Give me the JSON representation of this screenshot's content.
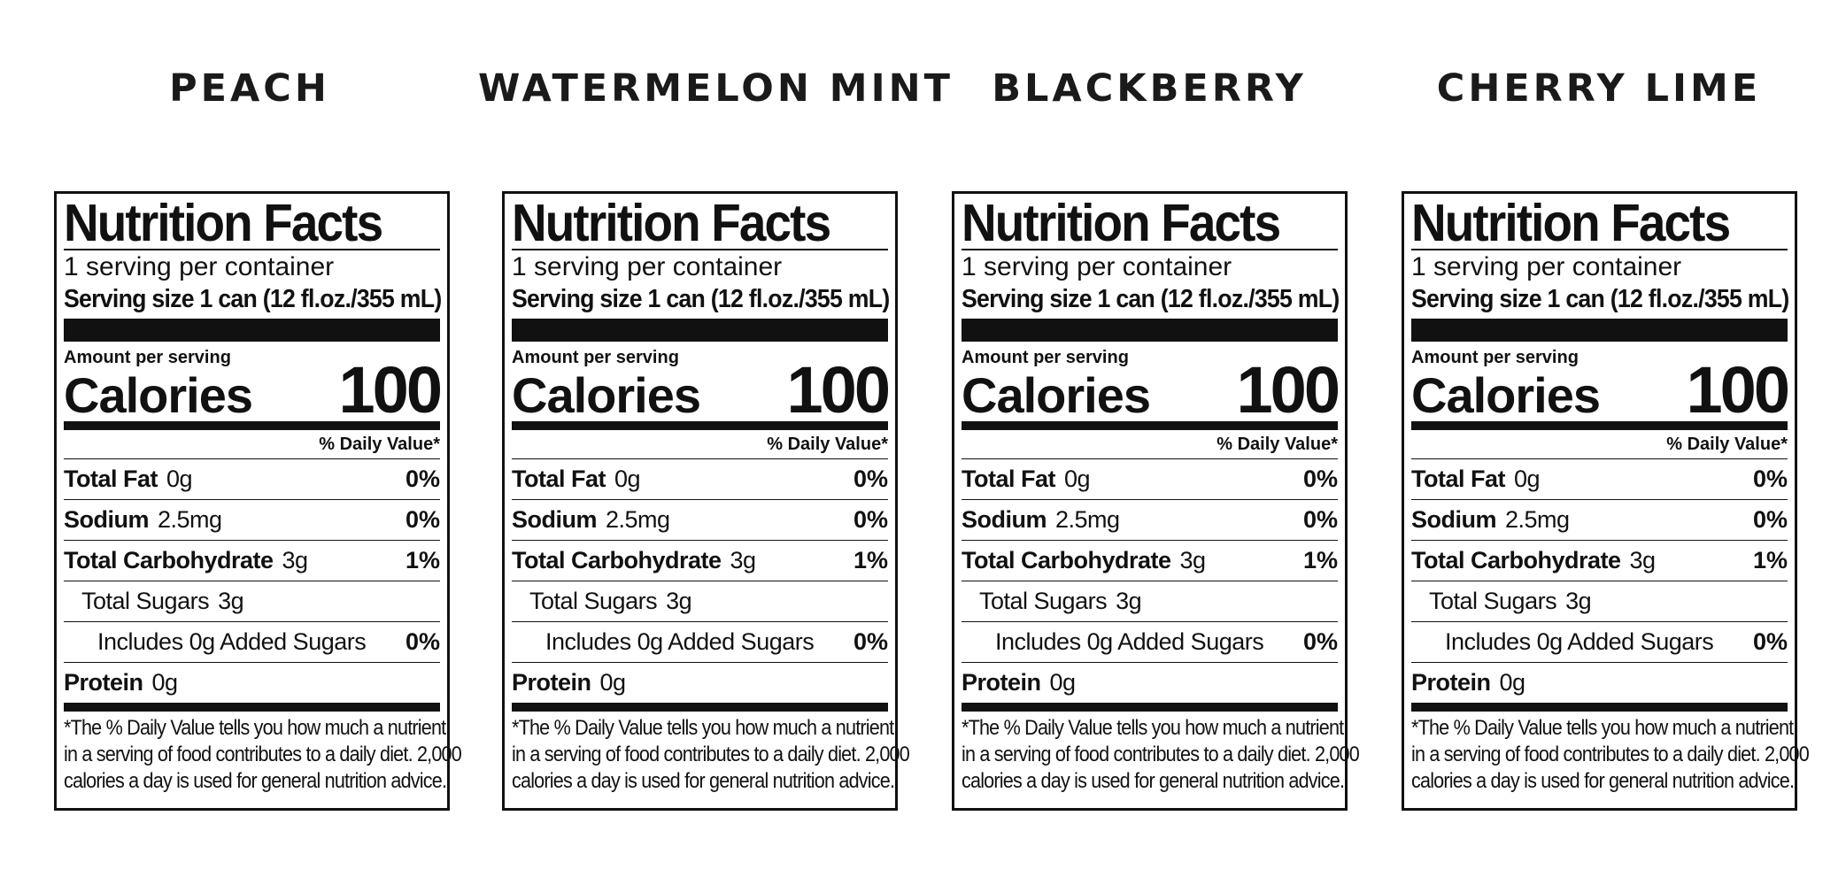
{
  "flavors": [
    {
      "name": "PEACH",
      "label": {
        "title": "Nutrition Facts",
        "servings_per_container": "1 serving per container",
        "serving_size": "Serving size 1 can  (12 fl.oz./355 mL)",
        "amount_per_serving": "Amount per serving",
        "calories_label": "Calories",
        "calories_value": "100",
        "daily_value_header": "% Daily Value*",
        "nutrients": [
          {
            "name": "Total Fat",
            "amount": "0g",
            "dv": "0%"
          },
          {
            "name": "Sodium",
            "amount": "2.5mg",
            "dv": "0%"
          },
          {
            "name": "Total Carbohydrate",
            "amount": "3g",
            "dv": "1%"
          },
          {
            "name": "Total Sugars",
            "amount": "3g",
            "dv": ""
          },
          {
            "name": "Includes 0g Added Sugars",
            "amount": "",
            "dv": "0%"
          },
          {
            "name": "Protein",
            "amount": "0g",
            "dv": ""
          }
        ],
        "footnote": [
          "*The % Daily Value tells you how much a nutrient",
          "in a serving of food contributes to a daily diet. 2,000",
          "calories a day is used for general nutrition advice."
        ]
      }
    },
    {
      "name": "WATERMELON MINT",
      "label": {
        "title": "Nutrition Facts",
        "servings_per_container": "1 serving per container",
        "serving_size": "Serving size 1 can  (12 fl.oz./355 mL)",
        "amount_per_serving": "Amount per serving",
        "calories_label": "Calories",
        "calories_value": "100",
        "daily_value_header": "% Daily Value*",
        "nutrients": [
          {
            "name": "Total Fat",
            "amount": "0g",
            "dv": "0%"
          },
          {
            "name": "Sodium",
            "amount": "2.5mg",
            "dv": "0%"
          },
          {
            "name": "Total Carbohydrate",
            "amount": "3g",
            "dv": "1%"
          },
          {
            "name": "Total Sugars",
            "amount": "3g",
            "dv": ""
          },
          {
            "name": "Includes 0g Added Sugars",
            "amount": "",
            "dv": "0%"
          },
          {
            "name": "Protein",
            "amount": "0g",
            "dv": ""
          }
        ],
        "footnote": [
          "*The % Daily Value tells you how much a nutrient",
          "in a serving of food contributes to a daily diet. 2,000",
          "calories a day is used for general nutrition advice."
        ]
      }
    },
    {
      "name": "BLACKBERRY",
      "label": {
        "title": "Nutrition Facts",
        "servings_per_container": "1 serving per container",
        "serving_size": "Serving size 1 can  (12 fl.oz./355 mL)",
        "amount_per_serving": "Amount per serving",
        "calories_label": "Calories",
        "calories_value": "100",
        "daily_value_header": "% Daily Value*",
        "nutrients": [
          {
            "name": "Total Fat",
            "amount": "0g",
            "dv": "0%"
          },
          {
            "name": "Sodium",
            "amount": "2.5mg",
            "dv": "0%"
          },
          {
            "name": "Total Carbohydrate",
            "amount": "3g",
            "dv": "1%"
          },
          {
            "name": "Total Sugars",
            "amount": "3g",
            "dv": ""
          },
          {
            "name": "Includes 0g Added Sugars",
            "amount": "",
            "dv": "0%"
          },
          {
            "name": "Protein",
            "amount": "0g",
            "dv": ""
          }
        ],
        "footnote": [
          "*The % Daily Value tells you how much a nutrient",
          "in a serving of food contributes to a daily diet. 2,000",
          "calories a day is used for general nutrition advice."
        ]
      }
    },
    {
      "name": "CHERRY LIME",
      "label": {
        "title": "Nutrition Facts",
        "servings_per_container": "1 serving per container",
        "serving_size": "Serving size 1 can  (12 fl.oz./355 mL)",
        "amount_per_serving": "Amount per serving",
        "calories_label": "Calories",
        "calories_value": "100",
        "daily_value_header": "% Daily Value*",
        "nutrients": [
          {
            "name": "Total Fat",
            "amount": "0g",
            "dv": "0%"
          },
          {
            "name": "Sodium",
            "amount": "2.5mg",
            "dv": "0%"
          },
          {
            "name": "Total Carbohydrate",
            "amount": "3g",
            "dv": "1%"
          },
          {
            "name": "Total Sugars",
            "amount": "3g",
            "dv": ""
          },
          {
            "name": "Includes 0g Added Sugars",
            "amount": "",
            "dv": "0%"
          },
          {
            "name": "Protein",
            "amount": "0g",
            "dv": ""
          }
        ],
        "footnote": [
          "*The % Daily Value tells you how much a nutrient",
          "in a serving of food contributes to a daily diet. 2,000",
          "calories a day is used for general nutrition advice."
        ]
      }
    }
  ]
}
